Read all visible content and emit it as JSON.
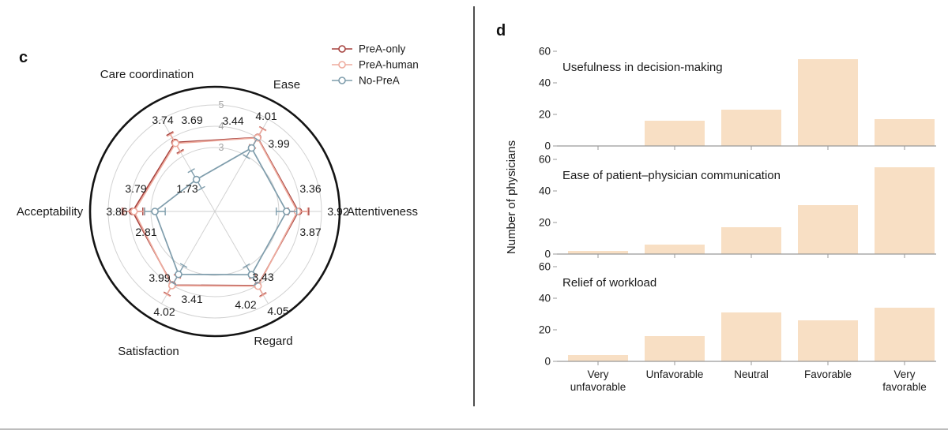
{
  "figure": {
    "panel_c_label": "c",
    "panel_d_label": "d"
  },
  "colors": {
    "prea_only": "#a5413d",
    "prea_human": "#eeab9e",
    "no_prea": "#7f9dac",
    "bar_fill": "#f8dfc4",
    "grid": "#d2d2d2",
    "axis": "#999999",
    "ring_label": "#a6a6a6",
    "text": "#1a1a1a"
  },
  "chart_data": [
    {
      "type": "radar",
      "panel": "c",
      "axes": [
        "Care coordination",
        "Ease",
        "Attentiveness",
        "Regard",
        "Satisfaction",
        "Acceptability"
      ],
      "ring_tick_labels": [
        "3",
        "4",
        "5"
      ],
      "scale": {
        "min": 0,
        "max": 5,
        "rings": [
          3,
          4,
          5
        ]
      },
      "legend_position": "top-right",
      "series": [
        {
          "name": "PreA-only",
          "color": "#a5413d",
          "values": [
            3.74,
            4.01,
            3.92,
            4.02,
            3.99,
            3.86
          ]
        },
        {
          "name": "PreA-human",
          "color": "#eeab9e",
          "values": [
            3.69,
            3.99,
            3.87,
            4.05,
            4.02,
            3.79
          ]
        },
        {
          "name": "No-PreA",
          "color": "#7f9dac",
          "values": [
            1.73,
            3.44,
            3.36,
            3.43,
            3.41,
            2.81
          ]
        }
      ]
    },
    {
      "type": "bar",
      "panel": "d",
      "title": "Usefulness in decision-making",
      "categories": [
        "Very unfavorable",
        "Unfavorable",
        "Neutral",
        "Favorable",
        "Very favorable"
      ],
      "values": [
        0,
        16,
        23,
        55,
        17
      ],
      "ylim": [
        0,
        60
      ],
      "yticks": [
        0,
        20,
        40,
        60
      ]
    },
    {
      "type": "bar",
      "panel": "d",
      "title": "Ease of patient–physician communication",
      "categories": [
        "Very unfavorable",
        "Unfavorable",
        "Neutral",
        "Favorable",
        "Very favorable"
      ],
      "values": [
        2,
        6,
        17,
        31,
        55
      ],
      "ylim": [
        0,
        60
      ],
      "yticks": [
        0,
        20,
        40,
        60
      ]
    },
    {
      "type": "bar",
      "panel": "d",
      "title": "Relief of workload",
      "categories": [
        "Very unfavorable",
        "Unfavorable",
        "Neutral",
        "Favorable",
        "Very favorable"
      ],
      "values": [
        4,
        16,
        31,
        26,
        34
      ],
      "ylim": [
        0,
        60
      ],
      "yticks": [
        0,
        20,
        40,
        60
      ]
    }
  ],
  "panel_d": {
    "ylabel": "Number of physicians"
  }
}
